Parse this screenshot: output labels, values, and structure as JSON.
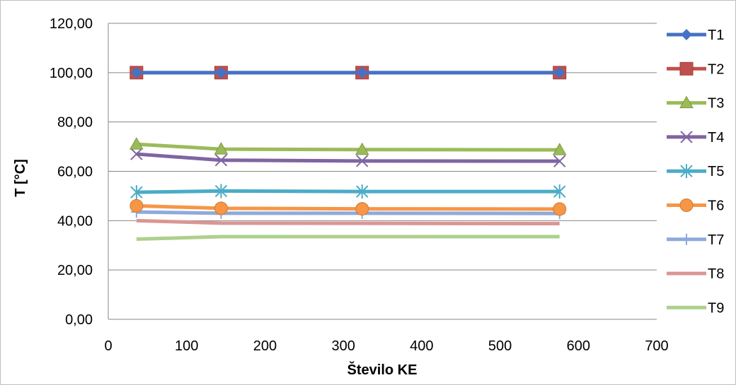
{
  "chart_data": {
    "type": "line",
    "title": "",
    "xlabel": "Število KE",
    "ylabel": "T [°C]",
    "xlim": [
      0,
      700
    ],
    "ylim": [
      0,
      120
    ],
    "xticks": [
      0,
      100,
      200,
      300,
      400,
      500,
      600,
      700
    ],
    "yticks": [
      0,
      20,
      40,
      60,
      80,
      100,
      120
    ],
    "ytick_labels": [
      "0,00",
      "20,00",
      "40,00",
      "60,00",
      "80,00",
      "100,00",
      "120,00"
    ],
    "xtick_labels": [
      "0",
      "100",
      "200",
      "300",
      "400",
      "500",
      "600",
      "700"
    ],
    "grid": "horizontal",
    "legend_position": "right",
    "x": [
      36,
      144,
      324,
      576
    ],
    "series": [
      {
        "name": "T1",
        "values": [
          100,
          100,
          100,
          100
        ],
        "color": "#4472c4",
        "marker": "diamond"
      },
      {
        "name": "T2",
        "values": [
          100,
          100,
          100,
          100
        ],
        "color": "#c0504d",
        "marker": "square"
      },
      {
        "name": "T3",
        "values": [
          71.0,
          69.0,
          68.8,
          68.7
        ],
        "color": "#9bbb59",
        "marker": "triangle"
      },
      {
        "name": "T4",
        "values": [
          67.0,
          64.5,
          64.2,
          64.1
        ],
        "color": "#8064a2",
        "marker": "x"
      },
      {
        "name": "T5",
        "values": [
          51.5,
          52.0,
          51.8,
          51.8
        ],
        "color": "#4bacc6",
        "marker": "asterisk"
      },
      {
        "name": "T6",
        "values": [
          46.0,
          45.0,
          44.8,
          44.7
        ],
        "color": "#f79646",
        "marker": "circle"
      },
      {
        "name": "T7",
        "values": [
          43.5,
          43.0,
          43.0,
          42.9
        ],
        "color": "#8eaadb",
        "marker": "plus"
      },
      {
        "name": "T8",
        "values": [
          40.0,
          39.0,
          38.9,
          38.8
        ],
        "color": "#da9694",
        "marker": "none"
      },
      {
        "name": "T9",
        "values": [
          32.5,
          33.5,
          33.5,
          33.5
        ],
        "color": "#aed08c",
        "marker": "none"
      }
    ]
  }
}
